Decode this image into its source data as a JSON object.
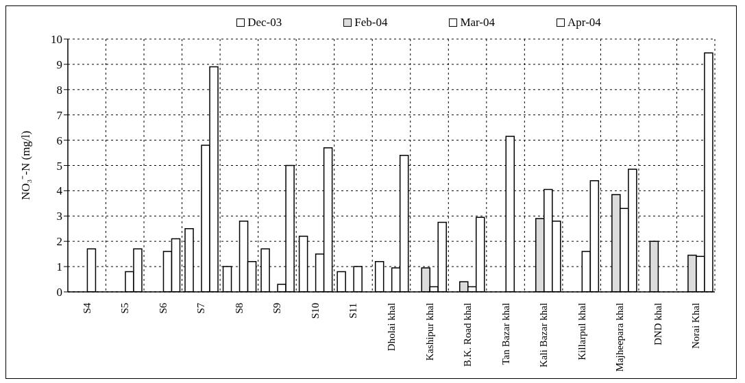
{
  "chart_data": {
    "type": "bar",
    "ylabel": "NO₃⁻-N (mg/l)",
    "categories": [
      "S4",
      "S5",
      "S6",
      "S7",
      "S8",
      "S9",
      "S10",
      "S11",
      "Dholai khal",
      "Kashipur khal",
      "B.K. Road khal",
      "Tan Bazar khal",
      "Kali Bazar khal",
      "Killarpul khal",
      "Majheepara khal",
      "DND khal",
      "Norai Khal"
    ],
    "series": [
      {
        "name": "Dec-03",
        "color": "#ffffff",
        "values": [
          null,
          null,
          null,
          2.5,
          1.0,
          1.7,
          2.2,
          0.8,
          1.2,
          null,
          null,
          null,
          null,
          null,
          null,
          null,
          null
        ]
      },
      {
        "name": "Feb-04",
        "color": "#dcdcdc",
        "values": [
          null,
          null,
          null,
          null,
          null,
          null,
          null,
          null,
          null,
          0.95,
          0.4,
          null,
          2.9,
          null,
          3.85,
          2.0,
          1.45
        ]
      },
      {
        "name": "Mar-04",
        "color": "#ffffff",
        "values": [
          1.7,
          0.8,
          1.6,
          5.8,
          2.8,
          0.3,
          1.5,
          1.0,
          0.95,
          0.2,
          0.2,
          6.15,
          4.05,
          1.6,
          3.3,
          null,
          1.4
        ]
      },
      {
        "name": "Apr-04",
        "color": "#ffffff",
        "values": [
          null,
          1.7,
          2.1,
          8.9,
          1.2,
          5.0,
          5.7,
          null,
          5.4,
          2.75,
          2.95,
          null,
          2.8,
          4.4,
          4.85,
          null,
          9.45
        ]
      }
    ],
    "ylim": [
      0,
      10
    ],
    "yticks": [
      0,
      1,
      2,
      3,
      4,
      5,
      6,
      7,
      8,
      9,
      10
    ],
    "grid": true,
    "legend": "top"
  }
}
